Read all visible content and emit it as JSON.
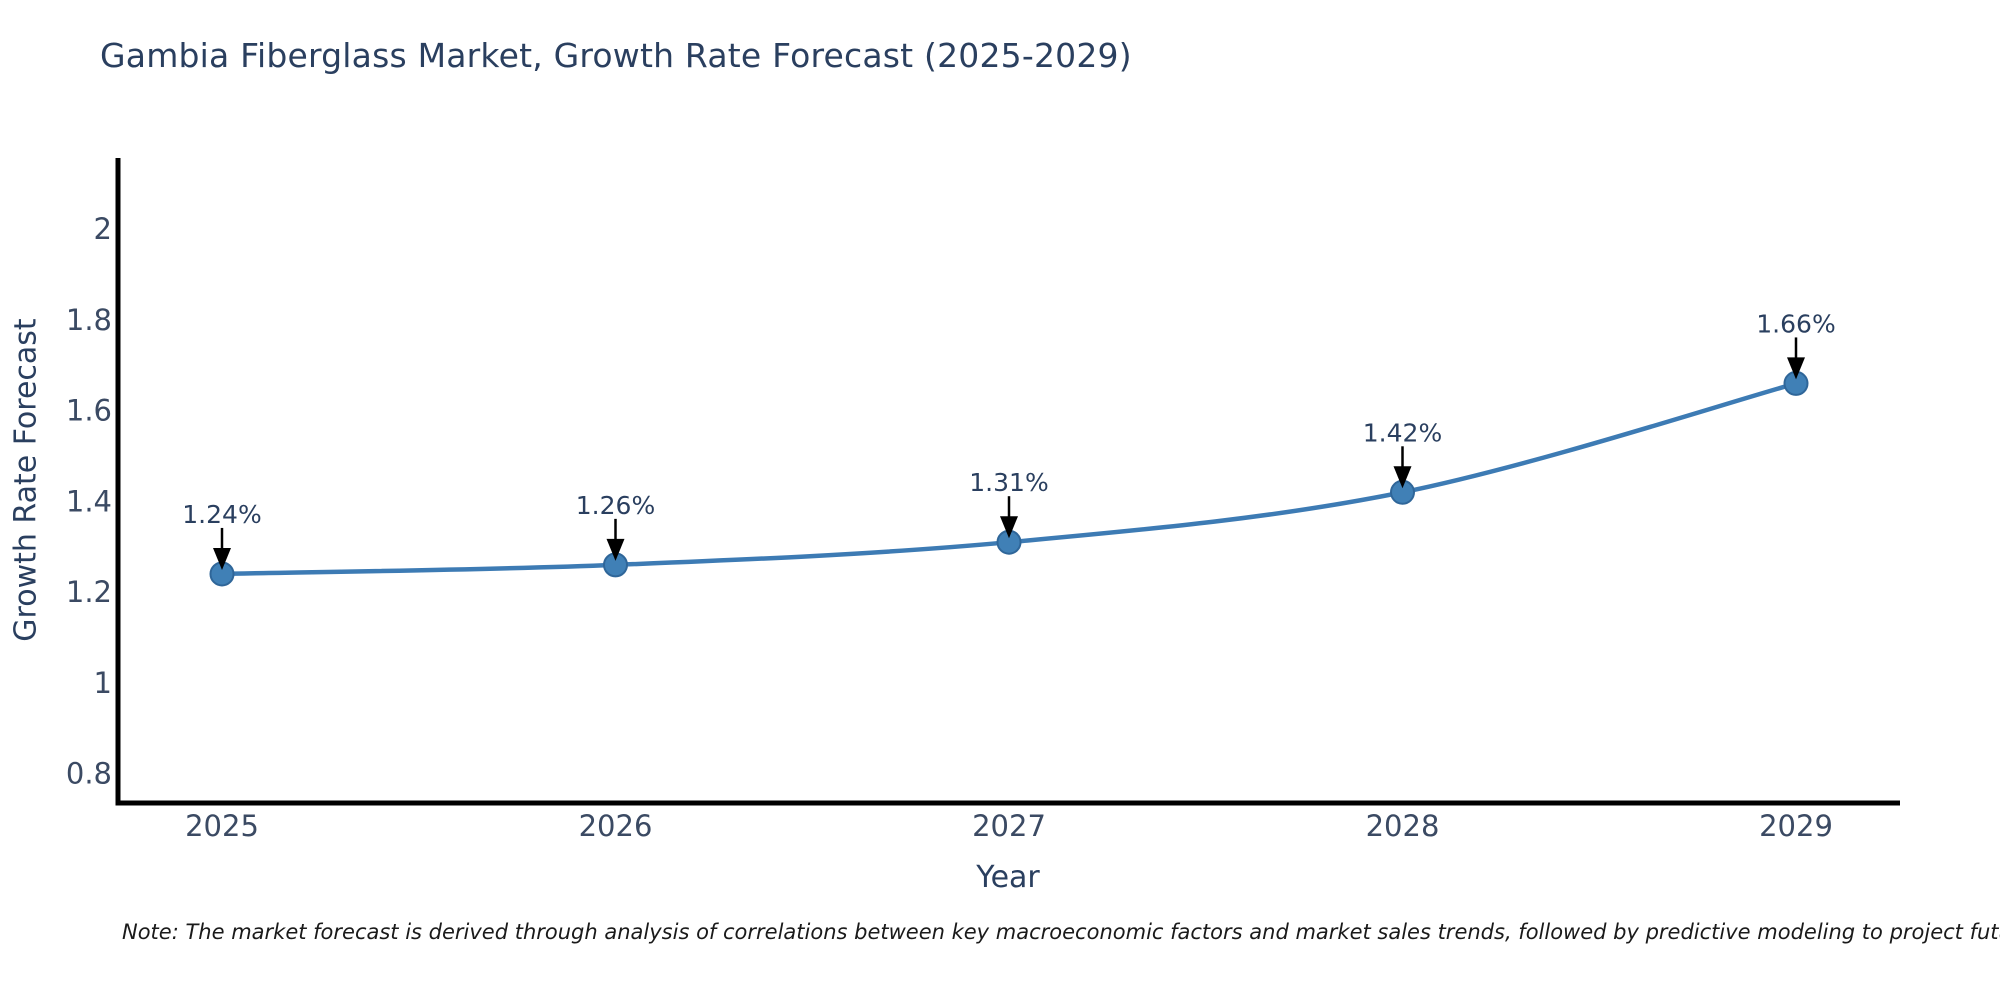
{
  "title": "Gambia Fiberglass Market, Growth Rate Forecast (2025-2029)",
  "note": "Note: The market forecast is derived through analysis of correlations between key macroeconomic factors and market sales trends, followed by predictive modeling to project future sales",
  "chart_data": {
    "type": "line",
    "title": "Gambia Fiberglass Market, Growth Rate Forecast (2025-2029)",
    "xlabel": "Year",
    "ylabel": "Growth Rate Forecast",
    "categories": [
      "2025",
      "2026",
      "2027",
      "2028",
      "2029"
    ],
    "series": [
      {
        "name": "Growth Rate Forecast",
        "values": [
          1.24,
          1.26,
          1.31,
          1.42,
          1.66
        ]
      }
    ],
    "point_labels": [
      "1.24%",
      "1.26%",
      "1.31%",
      "1.42%",
      "1.66%"
    ],
    "ytick_values": [
      0.8,
      1.0,
      1.2,
      1.4,
      1.6,
      1.8,
      2.0
    ],
    "ytick_labels": [
      "0.8",
      "1",
      "1.2",
      "1.4",
      "1.6",
      "1.8",
      "2"
    ],
    "ylim": [
      0.735,
      2.157
    ],
    "grid": false,
    "legend": "none",
    "line_shape": "spline",
    "annotation_arrows": true
  },
  "colors": {
    "title_text": "#2a3f5f",
    "axis_text": "#2a3f5f",
    "tick_text": "#3b4a63",
    "annotation_text": "#2a3f5f",
    "note_text": "#1a1a1a",
    "line": "#3d7bb4",
    "marker_fill": "#4080b6",
    "marker_stroke": "#2f6699",
    "spine": "#000000",
    "arrow": "#000000",
    "background": "#ffffff"
  }
}
